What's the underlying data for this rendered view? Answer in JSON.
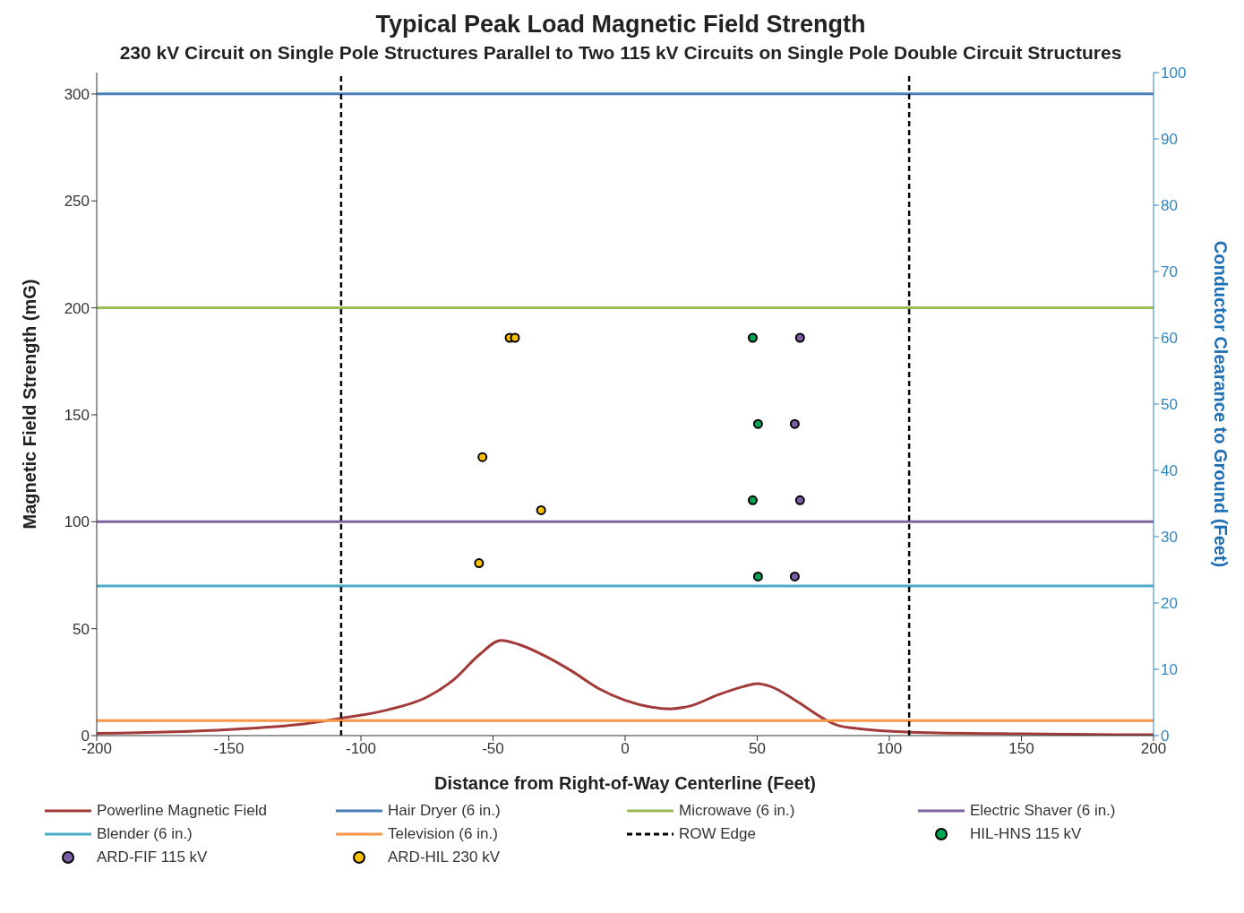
{
  "chart_data": {
    "type": "line",
    "title": "Typical Peak Load Magnetic Field Strength",
    "subtitle": "230 kV Circuit on Single Pole Structures Parallel to Two 115 kV Circuits on Single Pole Double Circuit Structures",
    "xlabel": "Distance from Right-of-Way Centerline (Feet)",
    "ylabel": "Magnetic Field Strength (mG)",
    "y2label": "Conductor Clearance to Ground (Feet)",
    "xlim": [
      -200,
      200
    ],
    "xticks": [
      -200,
      -150,
      -100,
      -50,
      0,
      50,
      100,
      150,
      200
    ],
    "ylim": [
      0,
      310
    ],
    "yticks": [
      0,
      50,
      100,
      150,
      200,
      250,
      300
    ],
    "y2lim": [
      0,
      100
    ],
    "y2ticks": [
      0,
      10,
      20,
      30,
      40,
      50,
      60,
      70,
      80,
      90,
      100
    ],
    "grid": false,
    "legend": "bottom",
    "series": [
      {
        "name": "Powerline Magnetic Field",
        "color": "#a33a3a",
        "x": [
          -200,
          -150,
          -125,
          -108,
          -90,
          -75,
          -65,
          -55,
          -47,
          -40,
          -30,
          -20,
          -10,
          0,
          10,
          17,
          25,
          35,
          45,
          50,
          55,
          65,
          75,
          80,
          90,
          108,
          150,
          200
        ],
        "values": [
          1,
          2.8,
          5,
          8,
          12,
          18,
          26,
          38,
          44.5,
          42.5,
          37,
          30,
          22,
          16.5,
          13.3,
          12.5,
          14,
          19,
          23,
          24.3,
          23,
          16,
          8,
          5,
          3,
          1.6,
          0.8,
          0.4
        ]
      },
      {
        "name": "Hair Dryer (6 in.)",
        "color": "#4a7ebb",
        "x": [
          -200,
          200
        ],
        "values": [
          300,
          300
        ]
      },
      {
        "name": "Microwave (6 in.)",
        "color": "#9bbb59",
        "x": [
          -200,
          200
        ],
        "values": [
          200,
          200
        ]
      },
      {
        "name": "Electric Shaver (6 in.)",
        "color": "#8064a2",
        "x": [
          -200,
          200
        ],
        "values": [
          100,
          100
        ]
      },
      {
        "name": "Blender (6 in.)",
        "color": "#4bacc6",
        "x": [
          -200,
          200
        ],
        "values": [
          70,
          70
        ]
      },
      {
        "name": "Television (6 in.)",
        "color": "#f79646",
        "x": [
          -200,
          200
        ],
        "values": [
          7,
          7
        ]
      },
      {
        "name": "HIL-HNS 115 kV",
        "type": "scatter",
        "marker": "circle",
        "axis": "y2",
        "color": "#00a651",
        "x": [
          48.3,
          50.3,
          48.3,
          50.3
        ],
        "values": [
          60,
          47,
          35.5,
          24
        ]
      },
      {
        "name": "ARD-FIF 115 kV",
        "type": "scatter",
        "marker": "circle",
        "axis": "y2",
        "color": "#7b5ea7",
        "x": [
          66.2,
          64.2,
          66.2,
          64.2
        ],
        "values": [
          60,
          47,
          35.5,
          24
        ]
      },
      {
        "name": "ARD-HIL 230 kV",
        "type": "scatter",
        "marker": "circle",
        "axis": "y2",
        "color": "#ffc000",
        "x": [
          -43.7,
          -41.7,
          -54,
          -31.8,
          -55.3
        ],
        "values": [
          60,
          60,
          42,
          34,
          26
        ]
      }
    ],
    "ref_lines": [
      {
        "axis": "x",
        "value": -107.5,
        "label": "ROW Edge",
        "color": "#000000",
        "line_style": "dashed"
      },
      {
        "axis": "x",
        "value": 107.5,
        "color": "#000000",
        "line_style": "dashed"
      }
    ]
  }
}
